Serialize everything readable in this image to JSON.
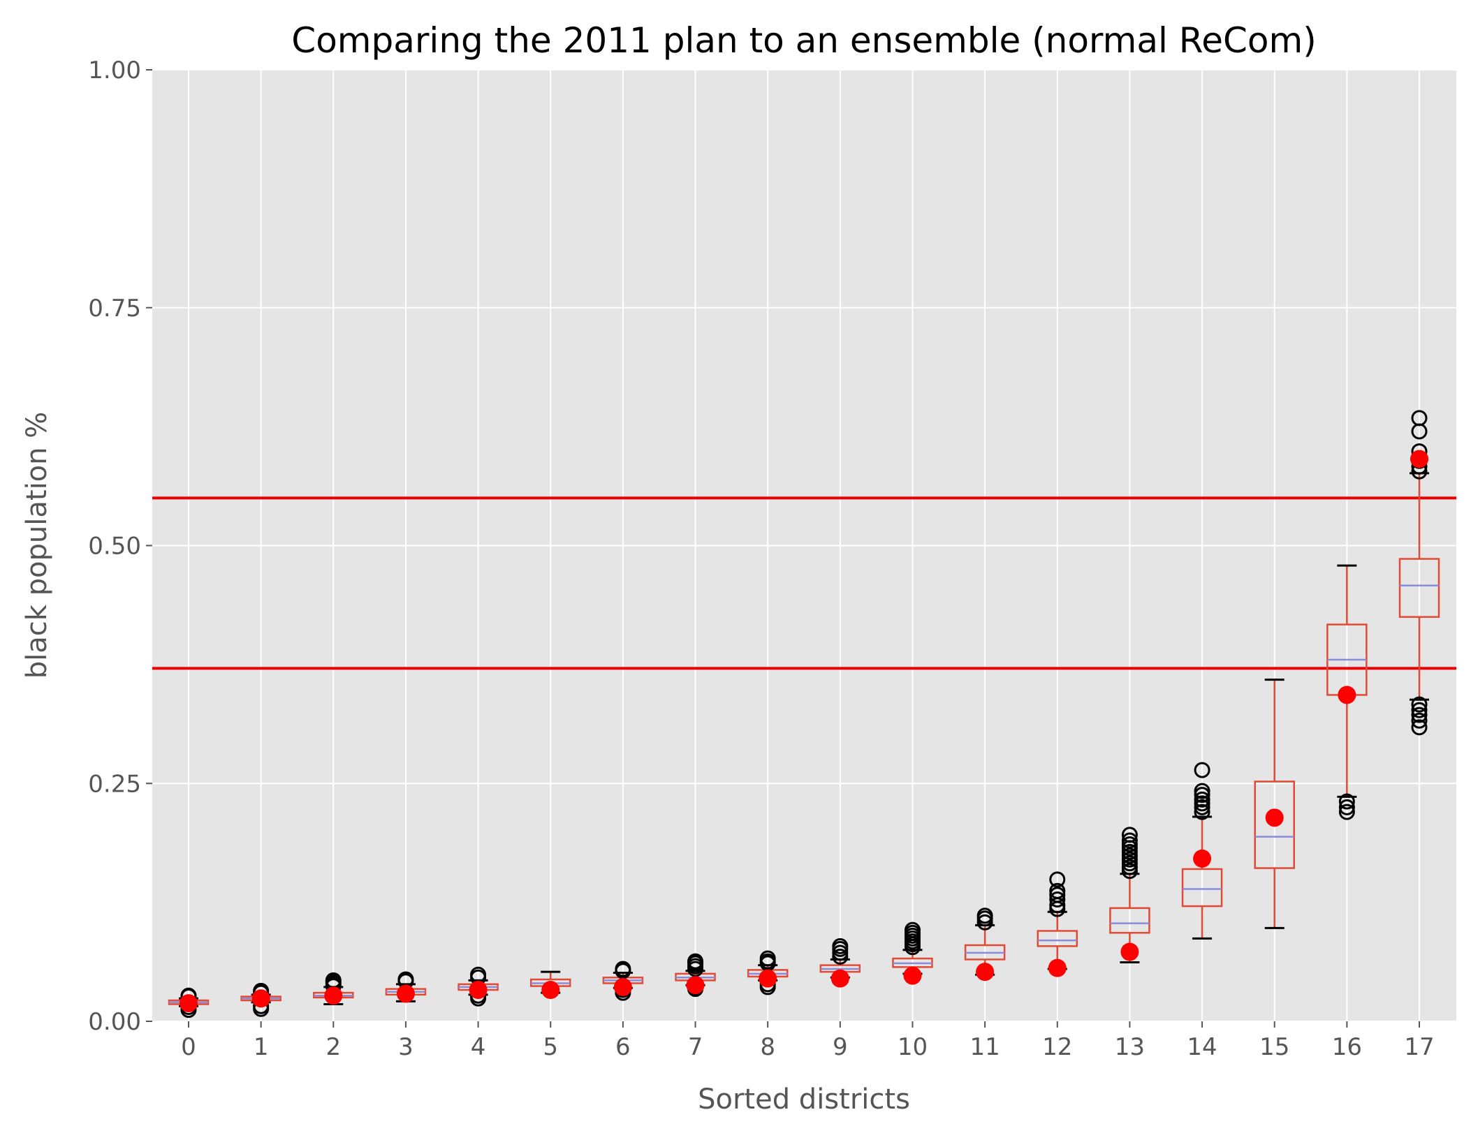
{
  "chart_data": {
    "type": "boxplot",
    "title": "Comparing the 2011 plan to an ensemble (normal ReCom)",
    "xlabel": "Sorted districts",
    "ylabel": "black population %",
    "ylim": [
      0,
      1
    ],
    "yticks": [
      "0.00",
      "0.25",
      "0.50",
      "0.75",
      "1.00"
    ],
    "grid": true,
    "categories": [
      "0",
      "1",
      "2",
      "3",
      "4",
      "5",
      "6",
      "7",
      "8",
      "9",
      "10",
      "11",
      "12",
      "13",
      "14",
      "15",
      "16",
      "17"
    ],
    "boxes": [
      {
        "whislo": 0.016,
        "q1": 0.018,
        "med": 0.02,
        "q3": 0.022,
        "whishi": 0.024,
        "fliers": [
          0.012,
          0.015,
          0.026,
          0.027
        ]
      },
      {
        "whislo": 0.02,
        "q1": 0.022,
        "med": 0.024,
        "q3": 0.026,
        "whishi": 0.028,
        "fliers": [
          0.013,
          0.016,
          0.03,
          0.032
        ]
      },
      {
        "whislo": 0.018,
        "q1": 0.025,
        "med": 0.027,
        "q3": 0.03,
        "whishi": 0.036,
        "fliers": [
          0.037,
          0.039,
          0.041,
          0.043
        ]
      },
      {
        "whislo": 0.021,
        "q1": 0.028,
        "med": 0.031,
        "q3": 0.034,
        "whishi": 0.039,
        "fliers": [
          0.042,
          0.044
        ]
      },
      {
        "whislo": 0.028,
        "q1": 0.033,
        "med": 0.036,
        "q3": 0.039,
        "whishi": 0.043,
        "fliers": [
          0.024,
          0.027,
          0.046,
          0.049
        ]
      },
      {
        "whislo": 0.03,
        "q1": 0.037,
        "med": 0.04,
        "q3": 0.044,
        "whishi": 0.052,
        "fliers": []
      },
      {
        "whislo": 0.035,
        "q1": 0.04,
        "med": 0.043,
        "q3": 0.046,
        "whishi": 0.051,
        "fliers": [
          0.03,
          0.033,
          0.053,
          0.055
        ]
      },
      {
        "whislo": 0.038,
        "q1": 0.043,
        "med": 0.046,
        "q3": 0.05,
        "whishi": 0.053,
        "fliers": [
          0.034,
          0.036,
          0.055,
          0.058,
          0.061,
          0.063
        ]
      },
      {
        "whislo": 0.043,
        "q1": 0.047,
        "med": 0.05,
        "q3": 0.054,
        "whishi": 0.059,
        "fliers": [
          0.036,
          0.039,
          0.061,
          0.063,
          0.066
        ]
      },
      {
        "whislo": 0.046,
        "q1": 0.052,
        "med": 0.055,
        "q3": 0.059,
        "whishi": 0.065,
        "fliers": [
          0.068,
          0.072,
          0.076,
          0.079
        ]
      },
      {
        "whislo": 0.05,
        "q1": 0.057,
        "med": 0.061,
        "q3": 0.066,
        "whishi": 0.075,
        "fliers": [
          0.078,
          0.081,
          0.084,
          0.087,
          0.09,
          0.093,
          0.096
        ]
      },
      {
        "whislo": 0.049,
        "q1": 0.065,
        "med": 0.072,
        "q3": 0.08,
        "whishi": 0.101,
        "fliers": [
          0.104,
          0.108,
          0.111
        ]
      },
      {
        "whislo": 0.055,
        "q1": 0.079,
        "med": 0.085,
        "q3": 0.095,
        "whishi": 0.115,
        "fliers": [
          0.118,
          0.122,
          0.128,
          0.133,
          0.137,
          0.149
        ]
      },
      {
        "whislo": 0.062,
        "q1": 0.093,
        "med": 0.103,
        "q3": 0.119,
        "whishi": 0.155,
        "fliers": [
          0.158,
          0.162,
          0.166,
          0.17,
          0.174,
          0.178,
          0.182,
          0.186,
          0.19,
          0.196
        ]
      },
      {
        "whislo": 0.087,
        "q1": 0.121,
        "med": 0.139,
        "q3": 0.16,
        "whishi": 0.215,
        "fliers": [
          0.22,
          0.225,
          0.229,
          0.233,
          0.238,
          0.242,
          0.264
        ]
      },
      {
        "whislo": 0.098,
        "q1": 0.161,
        "med": 0.194,
        "q3": 0.252,
        "whishi": 0.359,
        "fliers": []
      },
      {
        "whislo": 0.236,
        "q1": 0.343,
        "med": 0.38,
        "q3": 0.417,
        "whishi": 0.479,
        "fliers": [
          0.22,
          0.225,
          0.231
        ]
      },
      {
        "whislo": 0.338,
        "q1": 0.425,
        "med": 0.458,
        "q3": 0.486,
        "whishi": 0.576,
        "fliers": [
          0.309,
          0.316,
          0.322,
          0.327,
          0.333,
          0.578,
          0.583,
          0.589,
          0.599,
          0.62,
          0.634
        ]
      }
    ],
    "plan_2011": [
      0.019,
      0.024,
      0.027,
      0.029,
      0.033,
      0.033,
      0.036,
      0.038,
      0.045,
      0.045,
      0.048,
      0.052,
      0.056,
      0.073,
      0.171,
      0.214,
      0.343,
      0.591
    ],
    "reference_lines": [
      0.371,
      0.55
    ],
    "colors": {
      "background": "#e5e5e5",
      "grid": "#ffffff",
      "box": "#e24a33",
      "median": "#8b8bd9",
      "flier": "#000000",
      "whisker_cap": "#000000",
      "plan_points": "#ff0000",
      "reference_lines": "#ee0000"
    }
  }
}
